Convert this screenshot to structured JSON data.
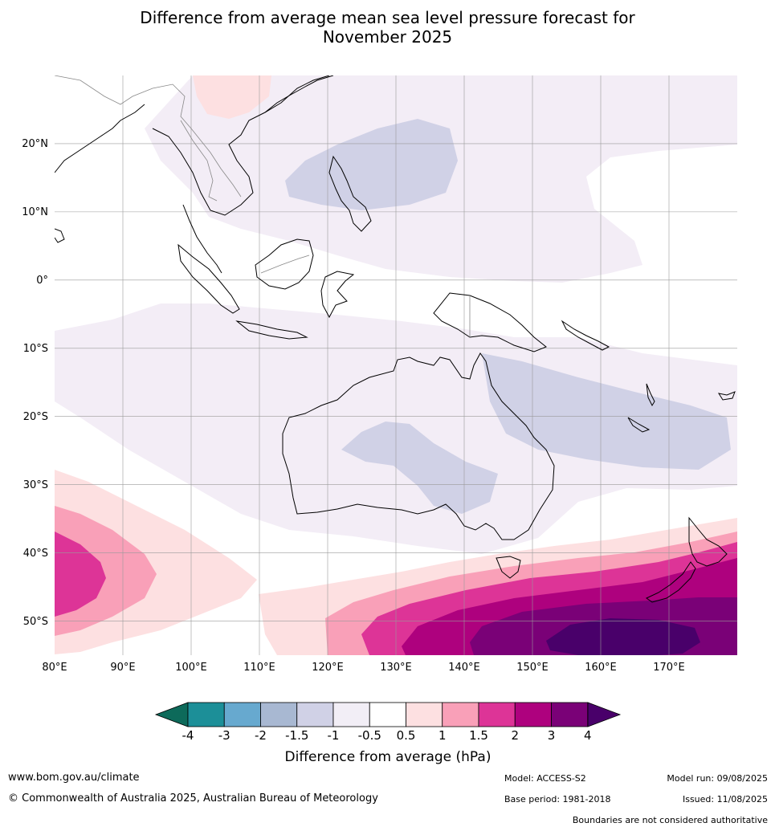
{
  "title": {
    "line1": "Difference from average mean sea level pressure forecast for",
    "line2": "November 2025"
  },
  "map": {
    "lat_labels": [
      "20°N",
      "10°N",
      "0°",
      "10°S",
      "20°S",
      "30°S",
      "40°S",
      "50°S"
    ],
    "lon_labels": [
      "80°E",
      "90°E",
      "100°E",
      "110°E",
      "120°E",
      "130°E",
      "140°E",
      "150°E",
      "160°E",
      "170°E"
    ],
    "extent": {
      "lon": [
        80,
        180
      ],
      "lat": [
        -55,
        30
      ]
    }
  },
  "colorbar": {
    "tick_labels": [
      "-4",
      "-3",
      "-2",
      "-1.5",
      "-1",
      "-0.5",
      "0.5",
      "1",
      "1.5",
      "2",
      "3",
      "4"
    ],
    "colors": [
      "#0d6a5a",
      "#1c8f98",
      "#67a9cf",
      "#a8b8d2",
      "#d0d1e6",
      "#f2eef6",
      "#ffffff",
      "#fde0e1",
      "#f9a0b8",
      "#dd3497",
      "#ae017e",
      "#7a0177",
      "#49006a"
    ],
    "label": "Difference from average (hPa)"
  },
  "footer": {
    "website": "www.bom.gov.au/climate",
    "copyright": "© Commonwealth of Australia 2025, Australian Bureau of Meteorology",
    "model": "Model: ACCESS-S2",
    "model_run": "Model run: 09/08/2025",
    "base_period": "Base period: 1981-2018",
    "issued": "Issued: 11/08/2025",
    "disclaimer": "Boundaries are not considered authoritative"
  }
}
